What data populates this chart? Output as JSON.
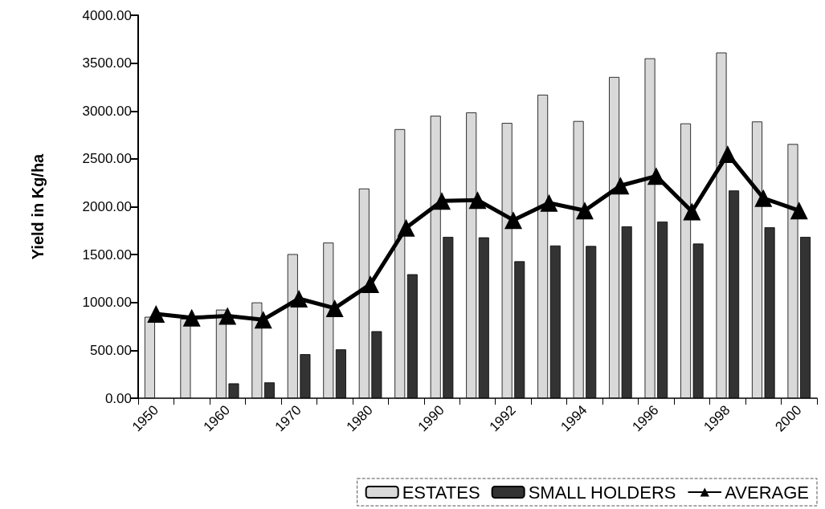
{
  "chart_data": {
    "type": "bar",
    "ylabel": "Yield in Kg/ha",
    "categories": [
      "1950",
      null,
      "1960",
      null,
      "1970",
      null,
      "1980",
      null,
      "1990",
      null,
      "1992",
      null,
      "1994",
      null,
      "1996",
      null,
      "1998",
      null,
      "2000"
    ],
    "series": [
      {
        "name": "ESTATES",
        "color": "#d9d9d9",
        "values": [
          850,
          830,
          925,
          1000,
          1505,
          1625,
          2190,
          2810,
          2950,
          2985,
          2875,
          3170,
          2895,
          3355,
          3550,
          2870,
          3610,
          2890,
          2655
        ]
      },
      {
        "name": "SMALL HOLDERS",
        "color": "#333333",
        "values": [
          null,
          null,
          155,
          165,
          460,
          510,
          700,
          1295,
          1685,
          1680,
          1430,
          1595,
          1590,
          1795,
          1845,
          1615,
          2170,
          1785,
          1685
        ]
      },
      {
        "name": "AVERAGE",
        "type": "line",
        "color": "#000000",
        "marker": "triangle",
        "values": [
          880,
          840,
          860,
          820,
          1040,
          940,
          1190,
          1780,
          2060,
          2070,
          1860,
          2040,
          1960,
          2220,
          2320,
          1950,
          2550,
          2090,
          1960
        ]
      }
    ],
    "ylim": [
      0,
      4000
    ],
    "yticks": [
      {
        "value": 0,
        "label": "0.00"
      },
      {
        "value": 500,
        "label": "500.00"
      },
      {
        "value": 1000,
        "label": "1000.00"
      },
      {
        "value": 1500,
        "label": "1500.00"
      },
      {
        "value": 2000,
        "label": "2000.00"
      },
      {
        "value": 2500,
        "label": "2500.00"
      },
      {
        "value": 3000,
        "label": "3000.00"
      },
      {
        "value": 3500,
        "label": "3500.00"
      },
      {
        "value": 4000,
        "label": "4000.00"
      }
    ],
    "grid": false,
    "legend": "bottom right"
  }
}
